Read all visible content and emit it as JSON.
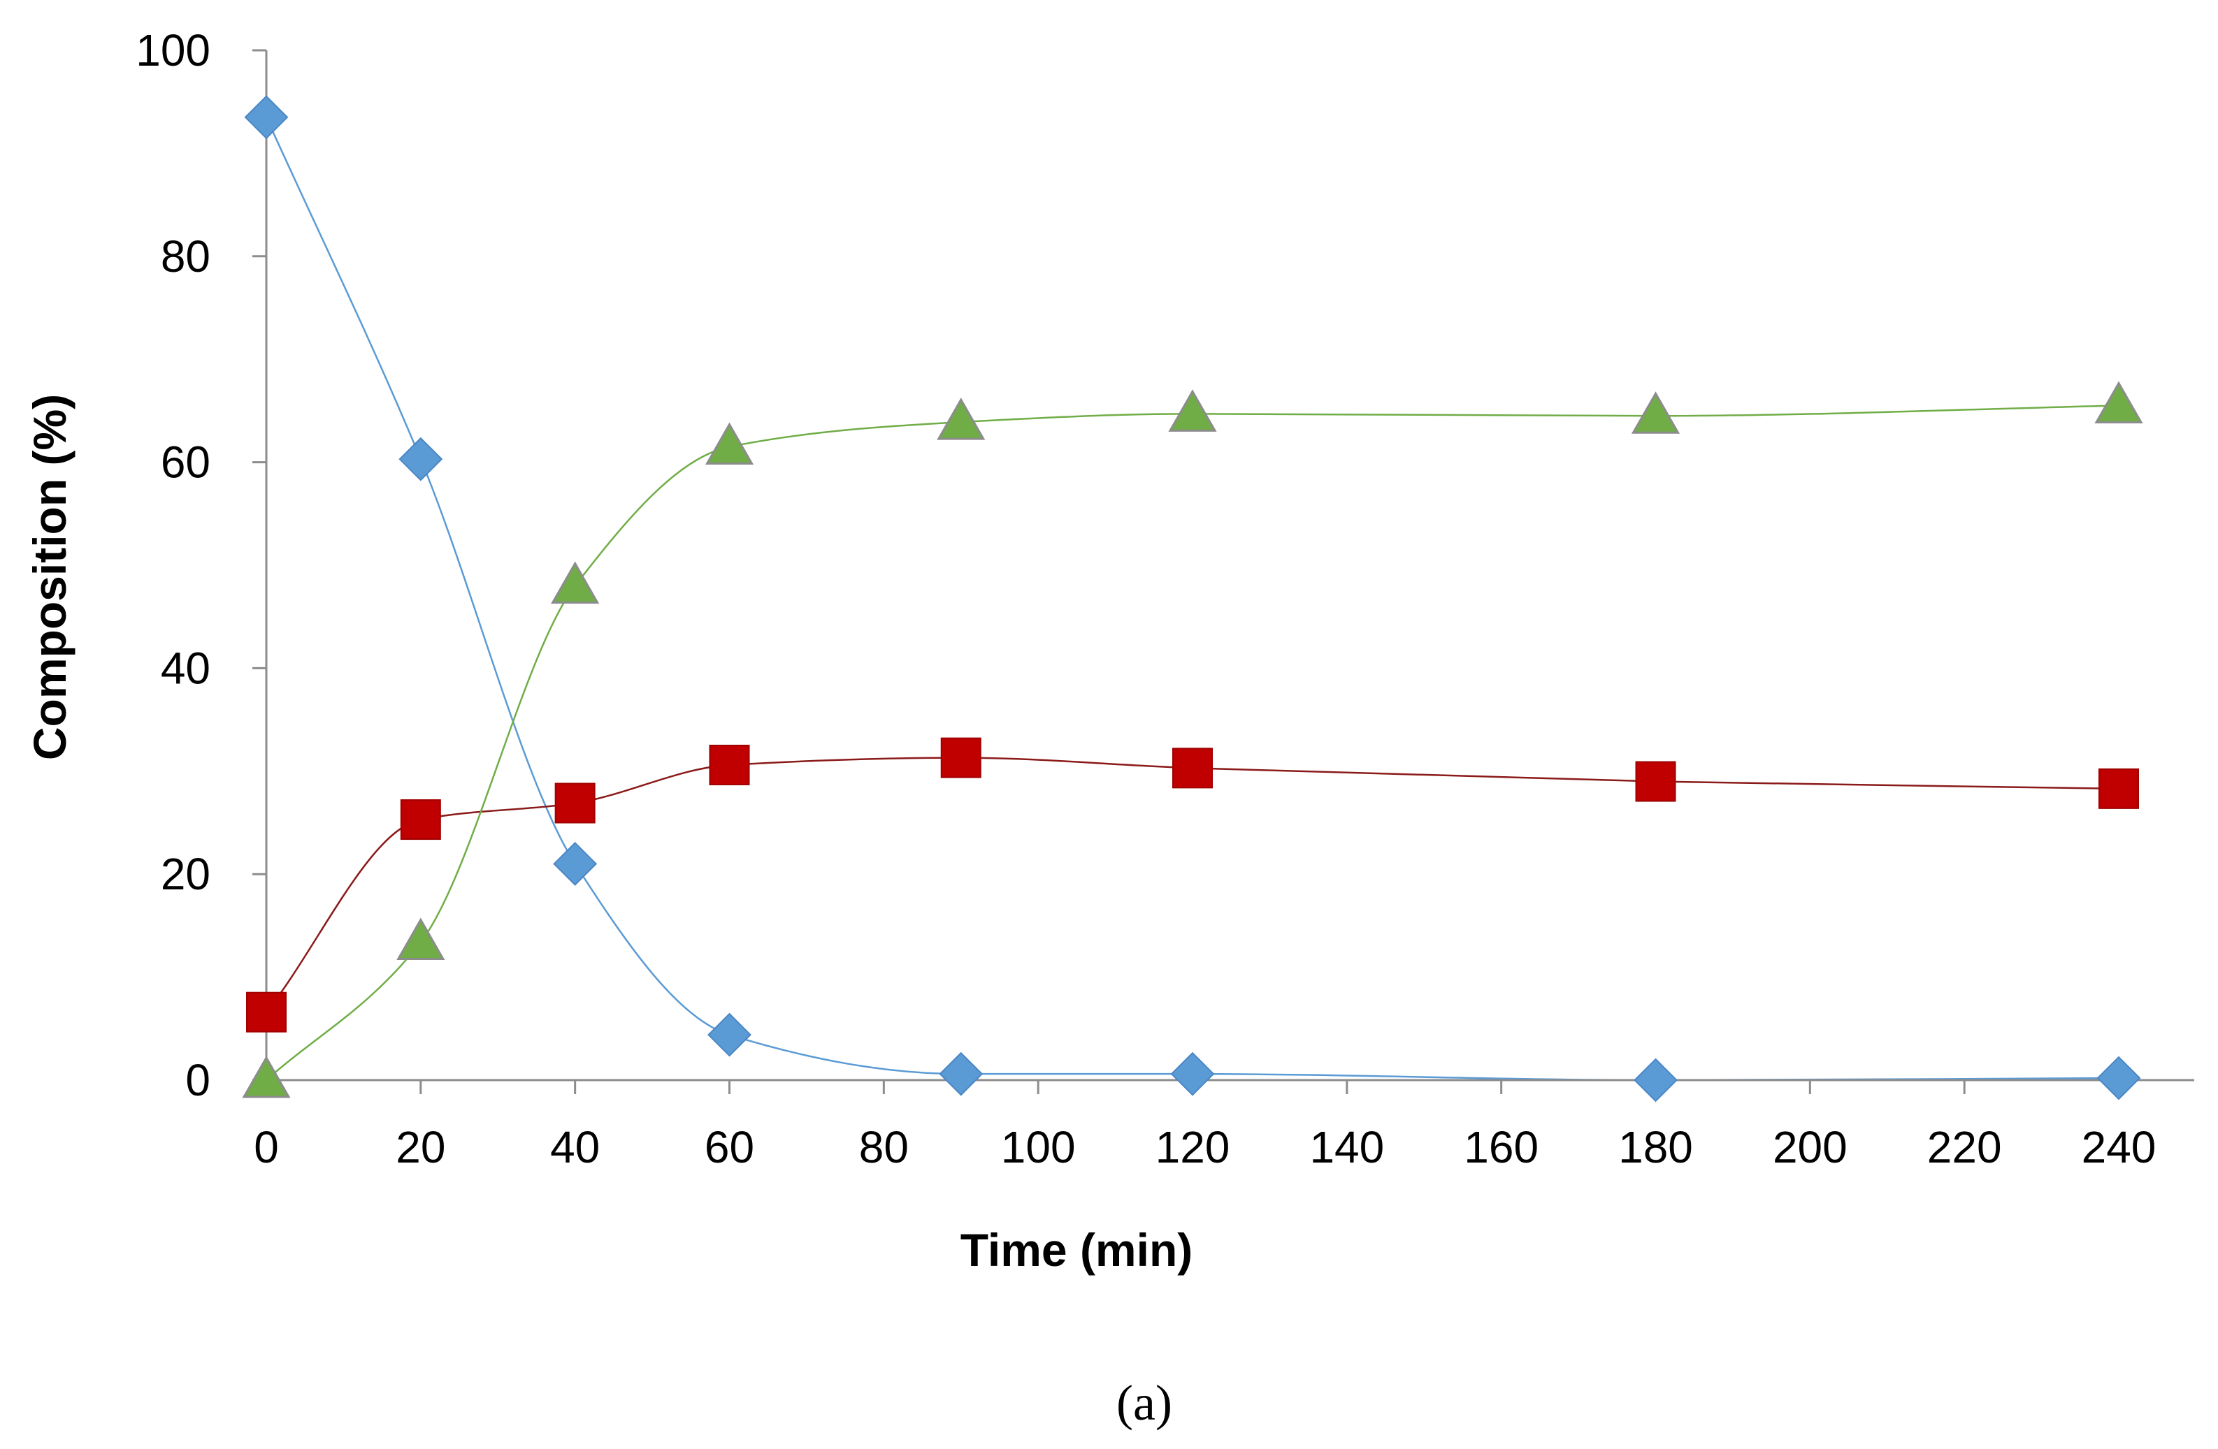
{
  "chart_data": {
    "type": "line",
    "title": "",
    "xlabel": "Time (min)",
    "ylabel": "Composition (%)",
    "panel_label": "(a)",
    "xlim": [
      0,
      240
    ],
    "ylim": [
      0,
      100
    ],
    "x_ticks": [
      "0",
      "20",
      "40",
      "60",
      "80",
      "100",
      "120",
      "140",
      "160",
      "180",
      "200",
      "220",
      "240"
    ],
    "y_ticks": [
      "0",
      "20",
      "40",
      "60",
      "80",
      "100"
    ],
    "x_tick_values": [
      0,
      20,
      40,
      60,
      80,
      100,
      120,
      140,
      160,
      180,
      200,
      220,
      240
    ],
    "y_tick_values": [
      0,
      20,
      40,
      60,
      80,
      100
    ],
    "grid": false,
    "legend": "none",
    "x": [
      0,
      20,
      40,
      60,
      90,
      120,
      180,
      240
    ],
    "series": [
      {
        "name": "diamond",
        "marker": "diamond",
        "color": "#5B9BD5",
        "line_color": "#5B9BD5",
        "values": [
          93.5,
          60.3,
          21.0,
          4.4,
          0.6,
          0.6,
          0.0,
          0.2
        ]
      },
      {
        "name": "square",
        "marker": "square",
        "color": "#C00000",
        "line_color": "#8B1A1A",
        "values": [
          6.6,
          25.3,
          26.9,
          30.6,
          31.3,
          30.3,
          29.0,
          28.3
        ]
      },
      {
        "name": "triangle",
        "marker": "triangle",
        "color": "#70AD47",
        "line_color": "#70AD47",
        "values": [
          0.0,
          13.4,
          48.0,
          61.5,
          63.9,
          64.7,
          64.5,
          65.5
        ]
      }
    ]
  }
}
